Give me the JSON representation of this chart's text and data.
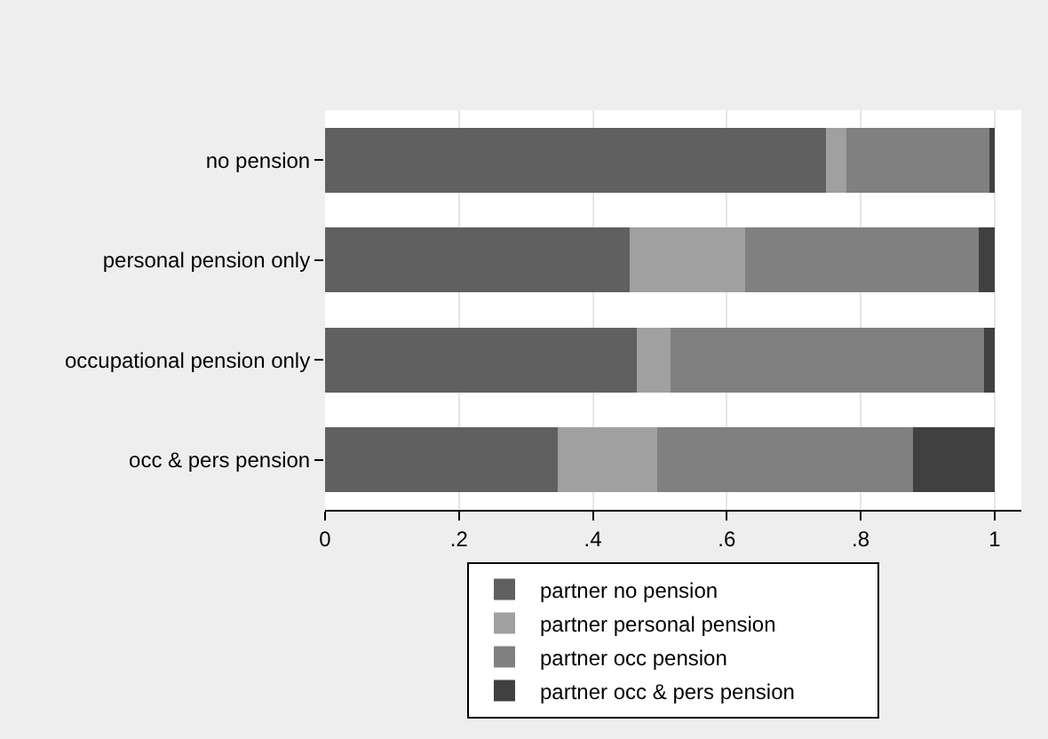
{
  "chart_data": {
    "type": "bar",
    "orientation": "horizontal",
    "stacked": true,
    "categories": [
      "no pension",
      "personal pension only",
      "occupational pension only",
      "occ & pers pension"
    ],
    "series": [
      {
        "name": "partner no pension",
        "color": "#606060",
        "values": [
          0.748,
          0.455,
          0.465,
          0.348
        ]
      },
      {
        "name": "partner personal pension",
        "color": "#a0a0a0",
        "values": [
          0.03,
          0.173,
          0.051,
          0.148
        ]
      },
      {
        "name": "partner occ pension",
        "color": "#808080",
        "values": [
          0.214,
          0.348,
          0.468,
          0.382
        ]
      },
      {
        "name": "partner occ & pers pension",
        "color": "#404040",
        "values": [
          0.008,
          0.024,
          0.016,
          0.122
        ]
      }
    ],
    "xlim": [
      0,
      1.04
    ],
    "xticks": [
      0,
      {
        "value": 0.2,
        "label": ".2"
      },
      {
        "value": 0.4,
        "label": ".4"
      },
      {
        "value": 0.6,
        "label": ".6"
      },
      {
        "value": 0.8,
        "label": ".8"
      },
      1
    ],
    "grid": "x",
    "legend": "bottom"
  }
}
